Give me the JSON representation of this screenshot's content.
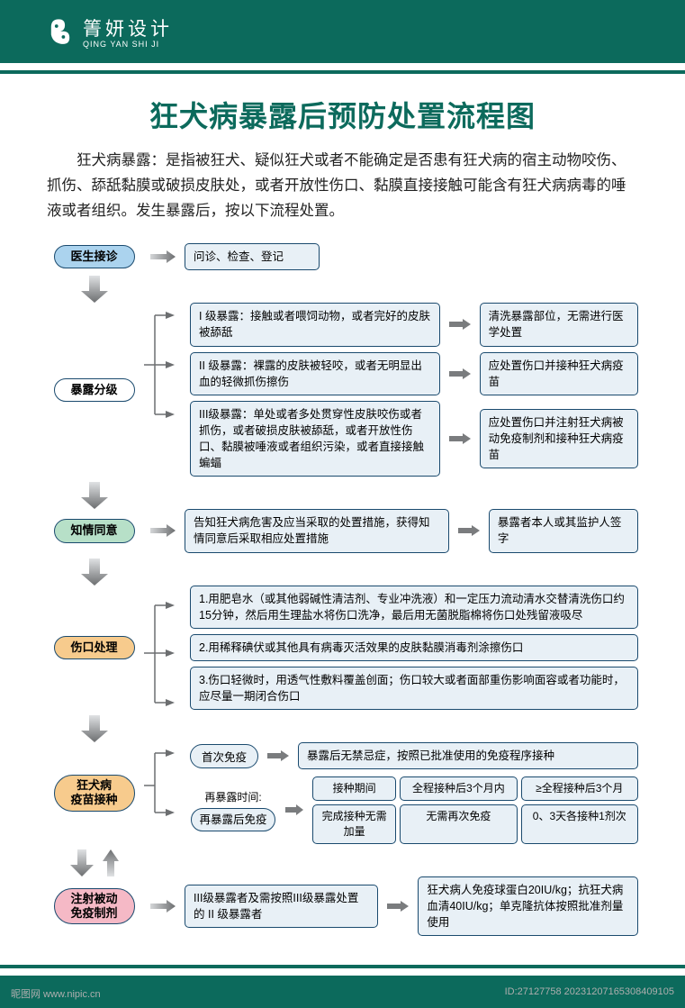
{
  "colors": {
    "brand": "#0c6a5c",
    "box_bg": "#e8f0f6",
    "box_border": "#1a4a6e",
    "pill_blue": "#abd3ee",
    "pill_green": "#b7e0c8",
    "pill_orange": "#f7cb8d",
    "pill_pink": "#f5b9c6",
    "arrow_fill": "#8c8e90",
    "text": "#222222"
  },
  "header": {
    "logo_ch": "箐妍设计",
    "logo_en": "QING YAN SHI JI"
  },
  "title": "狂犬病暴露后预防处置流程图",
  "intro": "狂犬病暴露：是指被狂犬、疑似狂犬或者不能确定是否患有狂犬病的宿主动物咬伤、抓伤、舔舐黏膜或破损皮肤处，或者开放性伤口、黏膜直接接触可能含有狂犬病病毒的唾液或者组织。发生暴露后，按以下流程处置。",
  "steps": {
    "s1": {
      "label": "医生接诊",
      "action": "问诊、检查、登记"
    },
    "s2": {
      "label": "暴露分级",
      "l1": {
        "desc": "I 级暴露：接触或者喂饲动物，或者完好的皮肤被舔舐",
        "resp": "清洗暴露部位，无需进行医学处置"
      },
      "l2": {
        "desc": "II 级暴露：裸露的皮肤被轻咬，或者无明显出血的轻微抓伤擦伤",
        "resp": "应处置伤口并接种狂犬病疫苗"
      },
      "l3": {
        "desc": "III级暴露：单处或者多处贯穿性皮肤咬伤或者抓伤，或者破损皮肤被舔舐，或者开放性伤口、黏膜被唾液或者组织污染，或者直接接触蝙蝠",
        "resp": "应处置伤口并注射狂犬病被动免疫制剂和接种狂犬病疫苗"
      }
    },
    "s3": {
      "label": "知情同意",
      "desc": "告知狂犬病危害及应当采取的处置措施，获得知情同意后采取相应处置措施",
      "resp": "暴露者本人或其监护人签字"
    },
    "s4": {
      "label": "伤口处理",
      "p1": "1.用肥皂水（或其他弱碱性清洁剂、专业冲洗液）和一定压力流动清水交替清洗伤口约15分钟，然后用生理盐水将伤口洗净，最后用无菌脱脂棉将伤口处残留液吸尽",
      "p2": "2.用稀释碘伏或其他具有病毒灭活效果的皮肤黏膜消毒剂涂擦伤口",
      "p3": "3.伤口轻微时，用透气性敷料覆盖创面；伤口较大或者面部重伤影响面容或者功能时，应尽量一期闭合伤口"
    },
    "s5": {
      "label": "狂犬病疫苗接种",
      "first": "首次免疫",
      "first_resp": "暴露后无禁忌症，按照已批准使用的免疫程序接种",
      "re": "再暴露后免疫",
      "re_time": "再暴露时间:",
      "h1": "接种期间",
      "h2": "全程接种后3个月内",
      "h3": "≥全程接种后3个月",
      "v1": "完成接种无需加量",
      "v2": "无需再次免疫",
      "v3": "0、3天各接种1剂次"
    },
    "s6": {
      "label": "注射被动免疫制剂",
      "desc": "III级暴露者及需按照III级暴露处置的 II 级暴露者",
      "resp": "狂犬病人免疫球蛋白20IU/kg；抗狂犬病血清40IU/kg；单克隆抗体按照批准剂量使用"
    }
  },
  "watermark": {
    "site": "昵图网  www.nipic.cn",
    "id": "ID:27127758  20231207165308409105"
  }
}
